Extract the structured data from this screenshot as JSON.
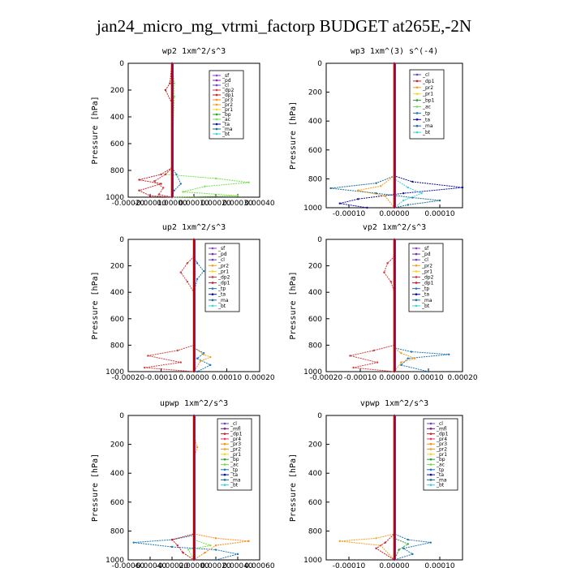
{
  "title": "jan24_micro_mg_vtrmi_factorp  BUDGET at265E,-2N",
  "colors": {
    "_sf": "#8e3fd0",
    "_pd": "#7a2fa0",
    "_cl": "#6a40c8",
    "_dp2": "#d23c3c",
    "_dp1": "#c81e28",
    "_pr3": "#ff8c1a",
    "_pr2": "#f0a020",
    "_pr1": "#ffd21e",
    "_bp": "#2ca02c",
    "_bp1": "#2ca02c",
    "_ac": "#74e04c",
    "_ta": "#0a0aa0",
    "_tp": "#1f77b4",
    "_ma": "#1a6f8f",
    "_bt": "#3fd0e0",
    "_mfl": "#6a1a8c",
    "_pr4": "#e04060",
    "_pr5": "#c02020"
  },
  "chart_data": [
    {
      "type": "line",
      "title": "wp2   1xm^2/s^3",
      "ylabel": "Pressure [hPa]",
      "xlim": [
        -0.0002,
        0.0004
      ],
      "ylim": [
        1000,
        0
      ],
      "xticks": [
        "-0.00020",
        "-0.00010",
        "0.00000",
        "0.00010",
        "0.00020",
        "0.00030",
        "0.00040"
      ],
      "yticks": [
        "0",
        "200",
        "400",
        "600",
        "800",
        "1000"
      ],
      "legend": [
        "_sf",
        "_pd",
        "_cl",
        "_dp2",
        "_dp1",
        "_pr3",
        "_pr2",
        "_pr1",
        "_bp",
        "_ac",
        "_ta",
        "_ma",
        "_bt"
      ],
      "series": [
        {
          "name": "_ac",
          "points": [
            [
              0,
              0
            ],
            [
              1e-05,
              150
            ],
            [
              1e-05,
              250
            ],
            [
              0,
              780
            ],
            [
              -3e-05,
              830
            ],
            [
              0.0002,
              860
            ],
            [
              0.00035,
              890
            ],
            [
              0.00015,
              920
            ],
            [
              5e-05,
              960
            ],
            [
              0.0003,
              990
            ],
            [
              0,
              1000
            ]
          ]
        },
        {
          "name": "_dp1",
          "points": [
            [
              0,
              0
            ],
            [
              -1e-05,
              150
            ],
            [
              -3e-05,
              200
            ],
            [
              0,
              300
            ],
            [
              0,
              780
            ],
            [
              -5e-05,
              830
            ],
            [
              -0.00015,
              870
            ],
            [
              -5e-05,
              900
            ],
            [
              -0.00015,
              950
            ],
            [
              -0.0001,
              990
            ],
            [
              0,
              1000
            ]
          ]
        },
        {
          "name": "_dp2",
          "points": [
            [
              0,
              0
            ],
            [
              0,
              780
            ],
            [
              -3e-05,
              830
            ],
            [
              -8e-05,
              880
            ],
            [
              -4e-05,
              930
            ],
            [
              -6e-05,
              980
            ],
            [
              0,
              1000
            ]
          ]
        },
        {
          "name": "_tp",
          "points": [
            [
              0,
              0
            ],
            [
              0,
              780
            ],
            [
              2e-05,
              830
            ],
            [
              4e-05,
              900
            ],
            [
              1e-05,
              950
            ],
            [
              0,
              1000
            ]
          ]
        },
        {
          "name": "_cl",
          "points": [
            [
              0,
              0
            ],
            [
              0,
              1000
            ]
          ]
        }
      ]
    },
    {
      "type": "line",
      "title": "wp3   1xm^(3) s^(-4)",
      "ylabel": "Pressure [hPa]",
      "xlim": [
        -0.00015,
        0.00015
      ],
      "ylim": [
        1000,
        0
      ],
      "xticks": [
        "-0.00010",
        "0.00000",
        "0.00010"
      ],
      "yticks": [
        "0",
        "200",
        "400",
        "600",
        "800",
        "1000"
      ],
      "legend": [
        "_cl",
        "_dp1",
        "_pr2",
        "_pr1",
        "_bp1",
        "_ac",
        "_tp",
        "_ta",
        "_ma",
        "_bt"
      ],
      "series": [
        {
          "name": "_ta",
          "points": [
            [
              0,
              0
            ],
            [
              0,
              780
            ],
            [
              4e-05,
              820
            ],
            [
              0.00015,
              860
            ],
            [
              2e-05,
              900
            ],
            [
              -8e-05,
              940
            ],
            [
              -0.00012,
              970
            ],
            [
              -6e-05,
              1000
            ]
          ]
        },
        {
          "name": "_ma",
          "points": [
            [
              0,
              0
            ],
            [
              0,
              780
            ],
            [
              -4e-05,
              830
            ],
            [
              -0.00014,
              865
            ],
            [
              -4e-05,
              900
            ],
            [
              4e-05,
              930
            ],
            [
              0.0001,
              950
            ],
            [
              3e-05,
              980
            ],
            [
              0,
              1000
            ]
          ]
        },
        {
          "name": "_pr2",
          "points": [
            [
              0,
              0
            ],
            [
              0,
              780
            ],
            [
              -3e-05,
              850
            ],
            [
              -8e-05,
              880
            ],
            [
              -2e-05,
              920
            ],
            [
              0,
              1000
            ]
          ]
        },
        {
          "name": "_bt",
          "points": [
            [
              0,
              0
            ],
            [
              0,
              800
            ],
            [
              3e-05,
              860
            ],
            [
              6e-05,
              900
            ],
            [
              2e-05,
              950
            ],
            [
              0,
              1000
            ]
          ]
        },
        {
          "name": "_dp1",
          "points": [
            [
              0,
              0
            ],
            [
              0,
              1000
            ]
          ]
        }
      ]
    },
    {
      "type": "line",
      "title": "up2   1xm^2/s^3",
      "ylabel": "Pressure [hPa]",
      "xlim": [
        -0.0002,
        0.0002
      ],
      "ylim": [
        1000,
        0
      ],
      "xticks": [
        "-0.00020",
        "-0.00010",
        "0.00000",
        "0.00010",
        "0.00020"
      ],
      "yticks": [
        "0",
        "200",
        "400",
        "600",
        "800",
        "1000"
      ],
      "legend": [
        "_sf",
        "_pd",
        "_cl",
        "_pr2",
        "_pr1",
        "_dp2",
        "_dp1",
        "_tp",
        "_ta",
        "_ma",
        "_bt"
      ],
      "series": [
        {
          "name": "_dp2",
          "points": [
            [
              0,
              0
            ],
            [
              0,
              130
            ],
            [
              -2e-05,
              180
            ],
            [
              -4e-05,
              250
            ],
            [
              -2e-05,
              320
            ],
            [
              0,
              400
            ],
            [
              0,
              800
            ],
            [
              -5e-05,
              840
            ],
            [
              -0.00014,
              880
            ],
            [
              -4e-05,
              930
            ],
            [
              -0.00015,
              970
            ],
            [
              0,
              1000
            ]
          ]
        },
        {
          "name": "_tp",
          "points": [
            [
              0,
              0
            ],
            [
              0,
              130
            ],
            [
              1e-05,
              180
            ],
            [
              3e-05,
              240
            ],
            [
              1e-05,
              300
            ],
            [
              0,
              400
            ],
            [
              0,
              820
            ],
            [
              3e-05,
              860
            ],
            [
              1e-05,
              900
            ],
            [
              5e-05,
              950
            ],
            [
              1e-05,
              1000
            ]
          ]
        },
        {
          "name": "_pr2",
          "points": [
            [
              0,
              0
            ],
            [
              0,
              820
            ],
            [
              3e-05,
              870
            ],
            [
              5e-05,
              890
            ],
            [
              2e-05,
              920
            ],
            [
              0,
              1000
            ]
          ]
        },
        {
          "name": "_dp1",
          "points": [
            [
              0,
              0
            ],
            [
              0,
              1000
            ]
          ]
        }
      ]
    },
    {
      "type": "line",
      "title": "vp2   1xm^2/s^3",
      "ylabel": "Pressure [hPa]",
      "xlim": [
        -0.0002,
        0.0002
      ],
      "ylim": [
        1000,
        0
      ],
      "xticks": [
        "-0.00020",
        "-0.00010",
        "0.00000",
        "0.00010",
        "0.00020"
      ],
      "yticks": [
        "0",
        "200",
        "400",
        "600",
        "800",
        "1000"
      ],
      "legend": [
        "_sf",
        "_pd",
        "_cl",
        "_pr2",
        "_pr1",
        "_dp2",
        "_dp1",
        "_tp",
        "_ta",
        "_ma",
        "_bt"
      ],
      "series": [
        {
          "name": "_dp2",
          "points": [
            [
              0,
              0
            ],
            [
              0,
              130
            ],
            [
              -2e-05,
              180
            ],
            [
              -3e-05,
              250
            ],
            [
              -1e-05,
              320
            ],
            [
              0,
              400
            ],
            [
              0,
              800
            ],
            [
              -6e-05,
              840
            ],
            [
              -0.00013,
              880
            ],
            [
              -5e-05,
              930
            ],
            [
              -0.00012,
              970
            ],
            [
              0,
              1000
            ]
          ]
        },
        {
          "name": "_tp",
          "points": [
            [
              0,
              0
            ],
            [
              0,
              820
            ],
            [
              5e-05,
              850
            ],
            [
              0.00016,
              870
            ],
            [
              4e-05,
              900
            ],
            [
              2e-05,
              950
            ],
            [
              0.0001,
              1000
            ]
          ]
        },
        {
          "name": "_pr2",
          "points": [
            [
              0,
              0
            ],
            [
              0,
              820
            ],
            [
              2e-05,
              860
            ],
            [
              6e-05,
              900
            ],
            [
              2e-05,
              930
            ],
            [
              0,
              1000
            ]
          ]
        },
        {
          "name": "_dp1",
          "points": [
            [
              0,
              0
            ],
            [
              0,
              1000
            ]
          ]
        }
      ]
    },
    {
      "type": "line",
      "title": "upwp   1xm^2/s^3",
      "ylabel": "Pressure [hPa]",
      "xlim": [
        -0.0006,
        0.0006
      ],
      "ylim": [
        1000,
        0
      ],
      "xticks": [
        "-0.00060",
        "-0.00040",
        "-0.00020",
        "0.00000",
        "0.00020",
        "0.00040",
        "0.00060"
      ],
      "yticks": [
        "0",
        "200",
        "400",
        "600",
        "800",
        "1000"
      ],
      "legend": [
        "_cl",
        "_mfl",
        "_dp1",
        "_pr4",
        "_pr3",
        "_pr2",
        "_pr1",
        "_bp",
        "_ac",
        "_tp",
        "_ta",
        "_ma",
        "_bt"
      ],
      "series": [
        {
          "name": "_tp",
          "points": [
            [
              0,
              0
            ],
            [
              0,
              830
            ],
            [
              -0.0002,
              860
            ],
            [
              -0.00055,
              880
            ],
            [
              -0.0002,
              910
            ],
            [
              0.0002,
              930
            ],
            [
              0.0004,
              960
            ],
            [
              0.0002,
              1000
            ]
          ]
        },
        {
          "name": "_pr3",
          "points": [
            [
              0,
              0
            ],
            [
              0,
              130
            ],
            [
              3e-05,
              220
            ],
            [
              0,
              300
            ],
            [
              0,
              820
            ],
            [
              0.0002,
              850
            ],
            [
              0.0005,
              870
            ],
            [
              0.0002,
              900
            ],
            [
              0.0001,
              950
            ],
            [
              0,
              1000
            ]
          ]
        },
        {
          "name": "_dp1",
          "points": [
            [
              0,
              0
            ],
            [
              0,
              820
            ],
            [
              -0.0002,
              860
            ],
            [
              -0.00015,
              900
            ],
            [
              -0.0001,
              950
            ],
            [
              0,
              1000
            ]
          ]
        },
        {
          "name": "_ac",
          "points": [
            [
              0,
              0
            ],
            [
              0,
              860
            ],
            [
              0.00015,
              900
            ],
            [
              -5e-05,
              930
            ],
            [
              0,
              1000
            ]
          ]
        },
        {
          "name": "_cl",
          "points": [
            [
              0,
              0
            ],
            [
              0,
              1000
            ]
          ]
        }
      ]
    },
    {
      "type": "line",
      "title": "vpwp   1xm^2/s^3",
      "ylabel": "Pressure [hPa]",
      "xlim": [
        -0.00015,
        0.00015
      ],
      "ylim": [
        1000,
        0
      ],
      "xticks": [
        "-0.00010",
        "0.00000",
        "0.00010"
      ],
      "yticks": [
        "0",
        "200",
        "400",
        "600",
        "800",
        "1000"
      ],
      "legend": [
        "_cl",
        "_mfl",
        "_dp1",
        "_pr4",
        "_pr3",
        "_pr2",
        "_pr1",
        "_bp",
        "_ac",
        "_tp",
        "_ta",
        "_ma",
        "_bt"
      ],
      "series": [
        {
          "name": "_pr2",
          "points": [
            [
              0,
              0
            ],
            [
              0,
              820
            ],
            [
              -4e-05,
              850
            ],
            [
              -0.00012,
              870
            ],
            [
              -3e-05,
              900
            ],
            [
              0,
              1000
            ]
          ]
        },
        {
          "name": "_tp",
          "points": [
            [
              0,
              0
            ],
            [
              0,
              820
            ],
            [
              3e-05,
              860
            ],
            [
              8e-05,
              880
            ],
            [
              2e-05,
              920
            ],
            [
              4e-05,
              960
            ],
            [
              0,
              1000
            ]
          ]
        },
        {
          "name": "_dp1",
          "points": [
            [
              0,
              0
            ],
            [
              0,
              820
            ],
            [
              -2e-05,
              880
            ],
            [
              -4e-05,
              920
            ],
            [
              0,
              1000
            ]
          ]
        },
        {
          "name": "_bp",
          "points": [
            [
              0,
              0
            ],
            [
              0,
              850
            ],
            [
              3e-05,
              890
            ],
            [
              1e-05,
              930
            ],
            [
              0,
              1000
            ]
          ]
        },
        {
          "name": "_cl",
          "points": [
            [
              0,
              0
            ],
            [
              0,
              1000
            ]
          ]
        }
      ]
    }
  ]
}
